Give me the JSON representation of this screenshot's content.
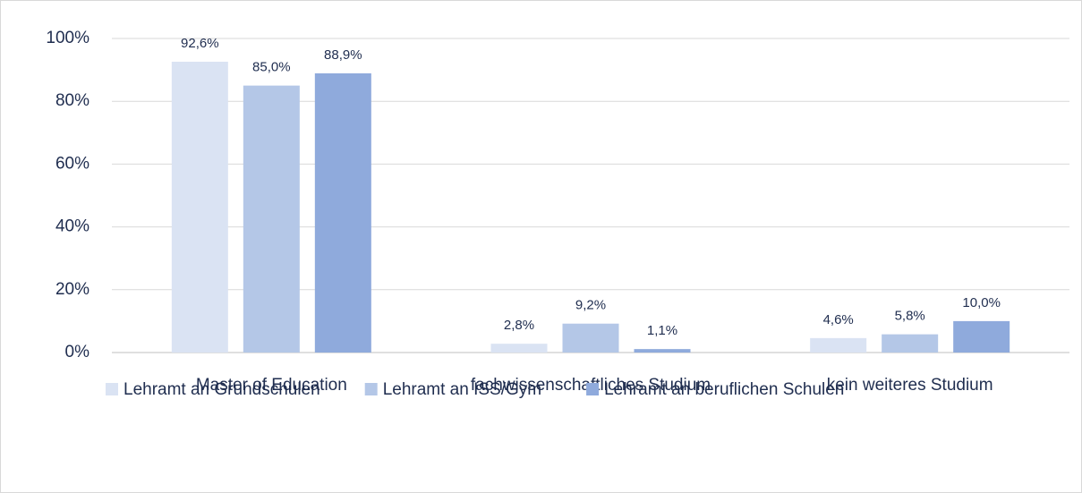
{
  "chart_data": {
    "type": "bar",
    "categories": [
      "Master of Education",
      "fachwissenschaftliches Studium",
      "kein weiteres Studium"
    ],
    "series": [
      {
        "name": "Lehramt an Grundschulen",
        "color": "#dae3f3",
        "values": [
          92.6,
          2.8,
          4.6
        ],
        "value_labels": [
          "92,6%",
          "2,8%",
          "4,6%"
        ]
      },
      {
        "name": "Lehramt an ISS/Gym",
        "color": "#b4c7e7",
        "values": [
          85.0,
          9.2,
          5.8
        ],
        "value_labels": [
          "85,0%",
          "9,2%",
          "5,8%"
        ]
      },
      {
        "name": "Lehramt an beruflichen Schulen",
        "color": "#8faadc",
        "values": [
          88.9,
          1.1,
          10.0
        ],
        "value_labels": [
          "88,9%",
          "1,1%",
          "10,0%"
        ]
      }
    ],
    "ylim": [
      0,
      100
    ],
    "yticks": [
      {
        "value": 0,
        "label": "0%"
      },
      {
        "value": 20,
        "label": "20%"
      },
      {
        "value": 40,
        "label": "40%"
      },
      {
        "value": 60,
        "label": "60%"
      },
      {
        "value": 80,
        "label": "80%"
      },
      {
        "value": 100,
        "label": "100%"
      }
    ],
    "grid": true,
    "legend": "bottom"
  }
}
